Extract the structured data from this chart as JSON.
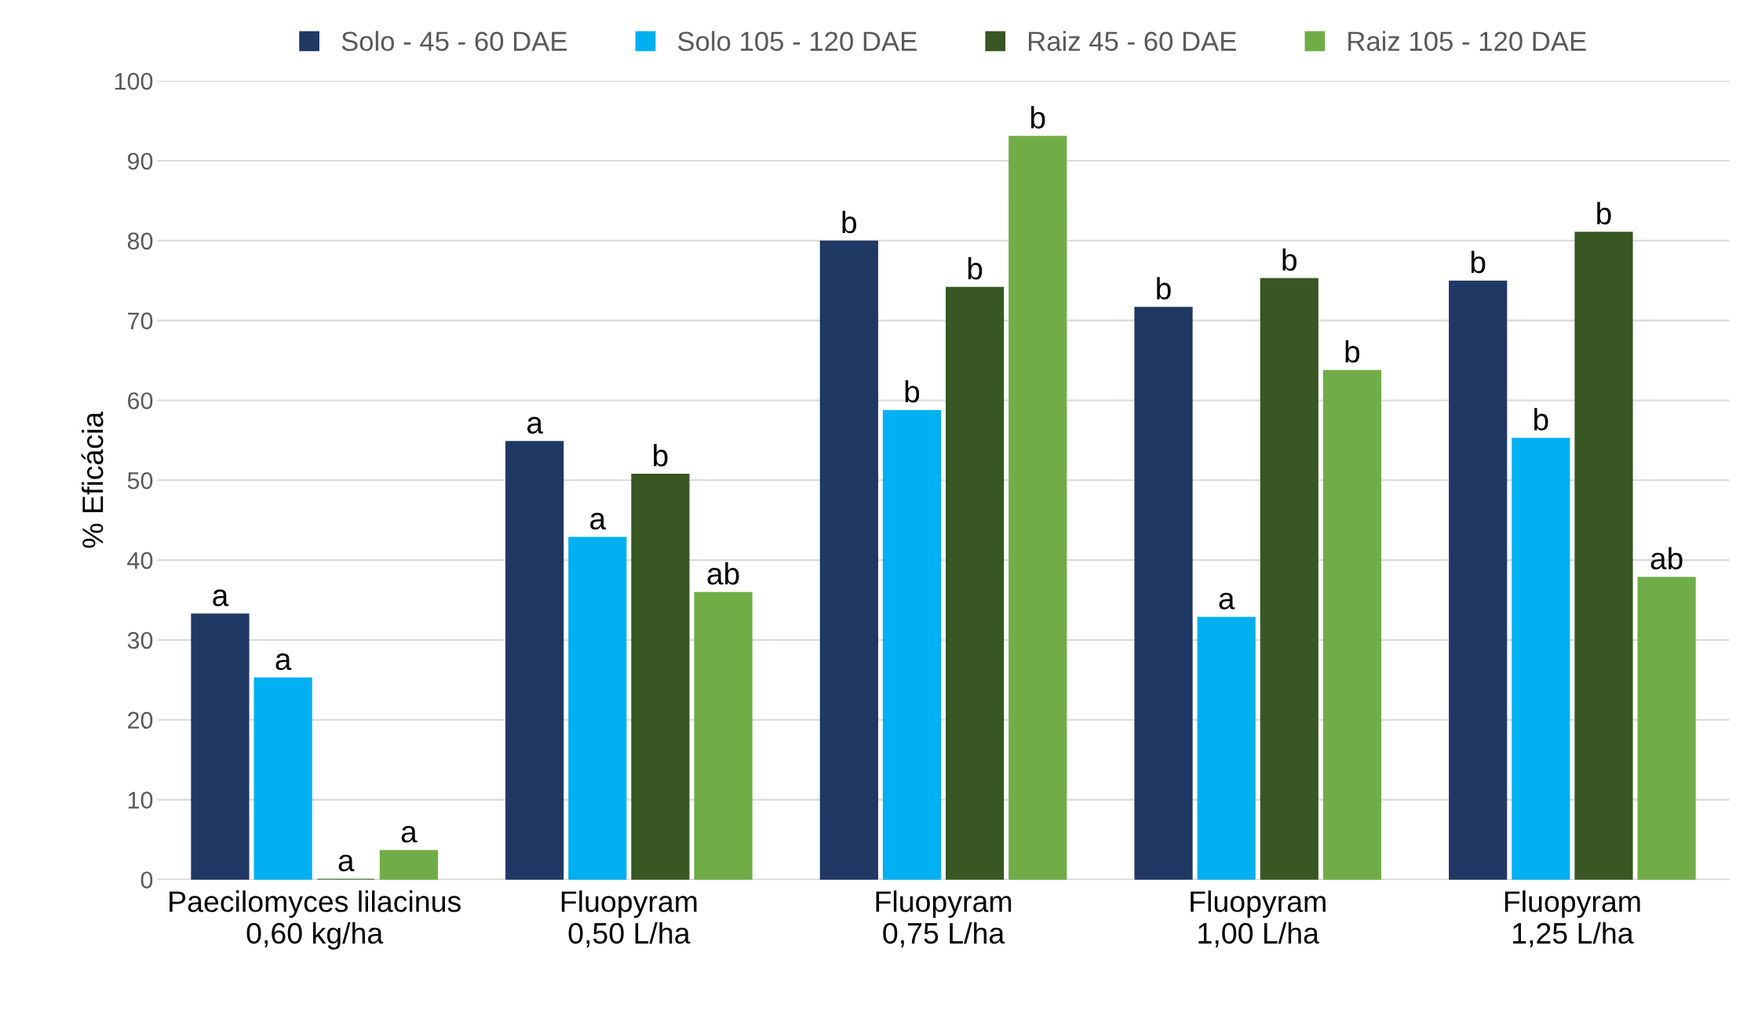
{
  "chart_data": {
    "type": "bar",
    "ylabel": "% Eficácia",
    "categories": [
      "Paecilomyces lilacinus\n0,60 kg/ha",
      "Fluopyram\n0,50 L/ha",
      "Fluopyram\n0,75 L/ha",
      "Fluopyram\n1,00 L/ha",
      "Fluopyram\n1,25 L/ha"
    ],
    "series": [
      {
        "name": "Solo - 45 - 60 DAE",
        "color": "#203864",
        "values": [
          33.2,
          54.8,
          79.9,
          71.6,
          74.9
        ],
        "value_labels": [
          "a",
          "a",
          "b",
          "b",
          "b"
        ]
      },
      {
        "name": "Solo 105 - 120 DAE",
        "color": "#00b0f0",
        "values": [
          25.2,
          42.8,
          58.7,
          32.8,
          55.2
        ],
        "value_labels": [
          "a",
          "a",
          "b",
          "a",
          "b"
        ]
      },
      {
        "name": "Raiz 45 - 60 DAE",
        "color": "#385723",
        "values": [
          0,
          50.7,
          74.1,
          75.2,
          81.0
        ],
        "value_labels": [
          "a",
          "b",
          "b",
          "b",
          "b"
        ]
      },
      {
        "name": "Raiz 105 - 120 DAE",
        "color": "#70ad47",
        "values": [
          3.6,
          35.9,
          93.0,
          63.7,
          37.8
        ],
        "value_labels": [
          "a",
          "ab",
          "b",
          "b",
          "ab"
        ]
      }
    ],
    "ylim": [
      0,
      100
    ],
    "yticks": [
      0,
      10,
      20,
      30,
      40,
      50,
      60,
      70,
      80,
      90,
      100
    ],
    "grid": "y",
    "legend": "top"
  }
}
